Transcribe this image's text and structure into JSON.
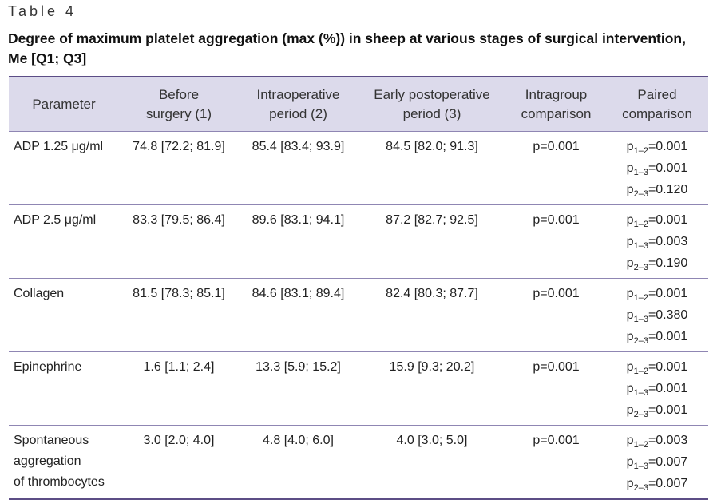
{
  "table_label": "Table 4",
  "title": "Degree of maximum platelet aggregation (max (%)) in sheep at various stages of surgical intervention, Me [Q1; Q3]",
  "headers": {
    "parameter": "Parameter",
    "before": [
      "Before",
      "surgery (1)"
    ],
    "intraop": [
      "Intraoperative",
      "period (2)"
    ],
    "early": [
      "Early postoperative",
      "period (3)"
    ],
    "intragroup": [
      "Intragroup",
      "comparison"
    ],
    "paired": [
      "Paired",
      "comparison"
    ]
  },
  "rows": [
    {
      "parameter": "ADP 1.25 μg/ml",
      "before": "74.8 [72.2; 81.9]",
      "intraop": "85.4 [83.4; 93.9]",
      "early": "84.5 [82.0; 91.3]",
      "intragroup": "p=0.001",
      "paired": [
        {
          "p": "p",
          "sub": "1–2",
          "val": "=0.001"
        },
        {
          "p": "p",
          "sub": "1–3",
          "val": "=0.001"
        },
        {
          "p": "p",
          "sub": "2–3",
          "val": "=0.120"
        }
      ]
    },
    {
      "parameter": "ADP 2.5 μg/ml",
      "before": "83.3 [79.5; 86.4]",
      "intraop": "89.6 [83.1; 94.1]",
      "early": "87.2 [82.7; 92.5]",
      "intragroup": "p=0.001",
      "paired": [
        {
          "p": "p",
          "sub": "1–2",
          "val": "=0.001"
        },
        {
          "p": "p",
          "sub": "1–3",
          "val": "=0.003"
        },
        {
          "p": "p",
          "sub": "2–3",
          "val": "=0.190"
        }
      ]
    },
    {
      "parameter": "Collagen",
      "before": "81.5 [78.3; 85.1]",
      "intraop": "84.6 [83.1; 89.4]",
      "early": "82.4 [80.3; 87.7]",
      "intragroup": "p=0.001",
      "paired": [
        {
          "p": "p",
          "sub": "1–2",
          "val": "=0.001"
        },
        {
          "p": "p",
          "sub": "1–3",
          "val": "=0.380"
        },
        {
          "p": "p",
          "sub": "2–3",
          "val": "=0.001"
        }
      ]
    },
    {
      "parameter": "Epinephrine",
      "before": "1.6 [1.1; 2.4]",
      "intraop": "13.3 [5.9; 15.2]",
      "early": "15.9 [9.3; 20.2]",
      "intragroup": "p=0.001",
      "paired": [
        {
          "p": "p",
          "sub": "1–2",
          "val": "=0.001"
        },
        {
          "p": "p",
          "sub": "1–3",
          "val": "=0.001"
        },
        {
          "p": "p",
          "sub": "2–3",
          "val": "=0.001"
        }
      ]
    },
    {
      "parameter": "Spontaneous aggregation of thrombocytes",
      "parameter_lines": [
        "Spontaneous",
        "aggregation",
        "of thrombocytes"
      ],
      "before": "3.0 [2.0; 4.0]",
      "intraop": "4.8 [4.0; 6.0]",
      "early": "4.0 [3.0; 5.0]",
      "intragroup": "p=0.001",
      "paired": [
        {
          "p": "p",
          "sub": "1–2",
          "val": "=0.003"
        },
        {
          "p": "p",
          "sub": "1–3",
          "val": "=0.007"
        },
        {
          "p": "p",
          "sub": "2–3",
          "val": "=0.007"
        }
      ]
    }
  ],
  "colors": {
    "header_bg": "#dcdaeb",
    "rule": "#5c4d86",
    "row_rule": "#8f86b3"
  }
}
